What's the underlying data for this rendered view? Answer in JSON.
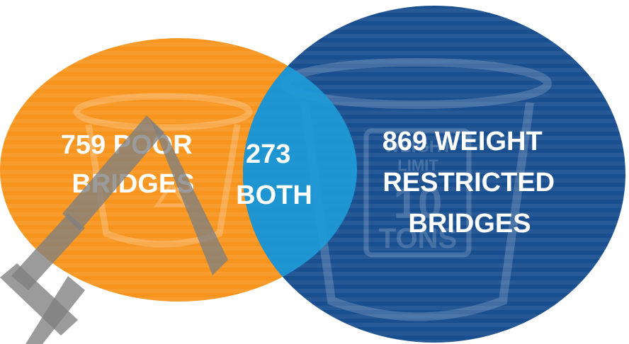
{
  "diagram": {
    "left_circle": {
      "label_lines": [
        "759 POOR",
        "BRIDGES"
      ],
      "color": "#f7941d",
      "icon": "bucket-icon"
    },
    "right_circle": {
      "label_lines": [
        "869 WEIGHT",
        "RESTRICTED",
        "BRIDGES"
      ],
      "color": "#1a4f8f",
      "icon": "bucket-icon",
      "sign_lines": [
        "WEIGHT",
        "LIMIT",
        "10",
        "TONS"
      ]
    },
    "overlap": {
      "label_lines": [
        "273",
        "BOTH"
      ],
      "color": "#1e9bd7"
    },
    "left_values": {
      "poor": 759,
      "weight_restricted": 869,
      "both": 273
    }
  }
}
